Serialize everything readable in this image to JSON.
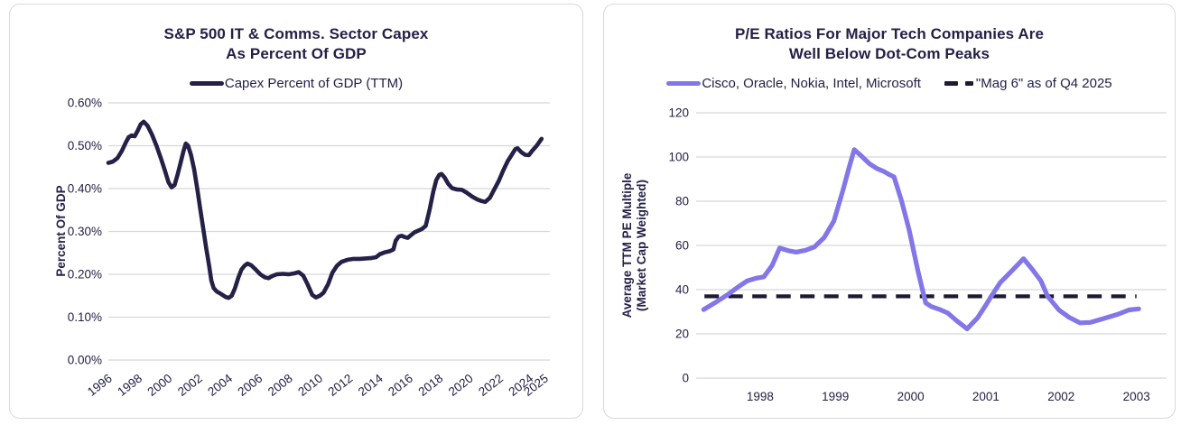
{
  "colors": {
    "navy": "#242046",
    "purple": "#8376E8",
    "dash_black": "#1D1A33",
    "gridline": "#D8D8D8",
    "card_border": "#D9D9D9",
    "card_background": "#FFFFFF"
  },
  "chart_data": [
    {
      "type": "line",
      "title_lines": [
        "S&P 500 IT & Comms. Sector Capex",
        "As Percent Of GDP"
      ],
      "ylabel_lines": [
        "Percent Of GDP"
      ],
      "legend_position": "top",
      "grid": "horizontal",
      "xlim": [
        1996,
        2025.05
      ],
      "ylim": [
        0,
        0.6
      ],
      "x_ticks": [
        1996,
        1998,
        2000,
        2002,
        2004,
        2006,
        2008,
        2010,
        2012,
        2014,
        2016,
        2018,
        2020,
        2022,
        2024,
        2025
      ],
      "y_ticks": [
        {
          "label": "0.00%",
          "v": 0
        },
        {
          "label": "0.10%",
          "v": 0.1
        },
        {
          "label": "0.20%",
          "v": 0.2
        },
        {
          "label": "0.30%",
          "v": 0.3
        },
        {
          "label": "0.40%",
          "v": 0.4
        },
        {
          "label": "0.50%",
          "v": 0.5
        },
        {
          "label": "0.60%",
          "v": 0.6
        }
      ],
      "series": [
        {
          "name": "Capex Percent of GDP (TTM)",
          "color": "#242046",
          "points": [
            [
              1996.0,
              0.46
            ],
            [
              1996.3,
              0.463
            ],
            [
              1996.6,
              0.471
            ],
            [
              1996.9,
              0.488
            ],
            [
              1997.15,
              0.507
            ],
            [
              1997.35,
              0.52
            ],
            [
              1997.55,
              0.524
            ],
            [
              1997.75,
              0.522
            ],
            [
              1997.95,
              0.535
            ],
            [
              1998.15,
              0.55
            ],
            [
              1998.35,
              0.556
            ],
            [
              1998.6,
              0.547
            ],
            [
              1998.9,
              0.526
            ],
            [
              1999.2,
              0.5
            ],
            [
              1999.5,
              0.47
            ],
            [
              1999.75,
              0.443
            ],
            [
              2000.0,
              0.415
            ],
            [
              2000.2,
              0.403
            ],
            [
              2000.4,
              0.408
            ],
            [
              2000.6,
              0.432
            ],
            [
              2000.8,
              0.46
            ],
            [
              2001.0,
              0.488
            ],
            [
              2001.15,
              0.505
            ],
            [
              2001.3,
              0.5
            ],
            [
              2001.5,
              0.478
            ],
            [
              2001.7,
              0.445
            ],
            [
              2001.9,
              0.402
            ],
            [
              2002.1,
              0.355
            ],
            [
              2002.3,
              0.308
            ],
            [
              2002.5,
              0.262
            ],
            [
              2002.7,
              0.22
            ],
            [
              2002.85,
              0.185
            ],
            [
              2003.0,
              0.168
            ],
            [
              2003.2,
              0.16
            ],
            [
              2003.5,
              0.154
            ],
            [
              2003.8,
              0.147
            ],
            [
              2004.0,
              0.145
            ],
            [
              2004.2,
              0.15
            ],
            [
              2004.4,
              0.166
            ],
            [
              2004.65,
              0.193
            ],
            [
              2004.85,
              0.211
            ],
            [
              2005.05,
              0.22
            ],
            [
              2005.25,
              0.225
            ],
            [
              2005.5,
              0.221
            ],
            [
              2005.8,
              0.211
            ],
            [
              2006.1,
              0.2
            ],
            [
              2006.4,
              0.193
            ],
            [
              2006.65,
              0.191
            ],
            [
              2006.9,
              0.196
            ],
            [
              2007.2,
              0.2
            ],
            [
              2007.6,
              0.201
            ],
            [
              2008.0,
              0.2
            ],
            [
              2008.35,
              0.202
            ],
            [
              2008.65,
              0.205
            ],
            [
              2008.95,
              0.197
            ],
            [
              2009.25,
              0.176
            ],
            [
              2009.55,
              0.152
            ],
            [
              2009.8,
              0.146
            ],
            [
              2010.05,
              0.15
            ],
            [
              2010.3,
              0.157
            ],
            [
              2010.6,
              0.176
            ],
            [
              2010.9,
              0.204
            ],
            [
              2011.2,
              0.22
            ],
            [
              2011.5,
              0.229
            ],
            [
              2011.9,
              0.234
            ],
            [
              2012.3,
              0.236
            ],
            [
              2012.7,
              0.236
            ],
            [
              2013.1,
              0.237
            ],
            [
              2013.5,
              0.238
            ],
            [
              2013.8,
              0.24
            ],
            [
              2014.05,
              0.247
            ],
            [
              2014.35,
              0.251
            ],
            [
              2014.7,
              0.254
            ],
            [
              2014.95,
              0.258
            ],
            [
              2015.1,
              0.278
            ],
            [
              2015.3,
              0.288
            ],
            [
              2015.5,
              0.29
            ],
            [
              2015.7,
              0.287
            ],
            [
              2015.9,
              0.285
            ],
            [
              2016.1,
              0.291
            ],
            [
              2016.35,
              0.298
            ],
            [
              2016.6,
              0.302
            ],
            [
              2016.85,
              0.306
            ],
            [
              2017.1,
              0.313
            ],
            [
              2017.35,
              0.35
            ],
            [
              2017.6,
              0.393
            ],
            [
              2017.8,
              0.42
            ],
            [
              2018.0,
              0.432
            ],
            [
              2018.15,
              0.434
            ],
            [
              2018.35,
              0.426
            ],
            [
              2018.6,
              0.411
            ],
            [
              2018.85,
              0.401
            ],
            [
              2019.15,
              0.398
            ],
            [
              2019.5,
              0.397
            ],
            [
              2019.8,
              0.391
            ],
            [
              2020.15,
              0.382
            ],
            [
              2020.5,
              0.375
            ],
            [
              2020.8,
              0.371
            ],
            [
              2021.05,
              0.369
            ],
            [
              2021.35,
              0.378
            ],
            [
              2021.65,
              0.398
            ],
            [
              2021.95,
              0.418
            ],
            [
              2022.25,
              0.442
            ],
            [
              2022.55,
              0.464
            ],
            [
              2022.8,
              0.478
            ],
            [
              2023.05,
              0.492
            ],
            [
              2023.2,
              0.494
            ],
            [
              2023.45,
              0.485
            ],
            [
              2023.7,
              0.479
            ],
            [
              2023.95,
              0.478
            ],
            [
              2024.2,
              0.489
            ],
            [
              2024.45,
              0.499
            ],
            [
              2024.8,
              0.516
            ]
          ]
        }
      ]
    },
    {
      "type": "line",
      "title_lines": [
        "P/E Ratios For Major Tech Companies Are",
        "Well Below Dot-Com Peaks"
      ],
      "ylabel_lines": [
        "Average TTM PE Multiple",
        "(Market Cap Weighted)"
      ],
      "legend_position": "top",
      "grid": "horizontal",
      "xlim": [
        1997.15,
        2003.4
      ],
      "ylim": [
        0,
        120
      ],
      "x_ticks": [
        1998,
        1999,
        2000,
        2001,
        2002,
        2003
      ],
      "y_ticks": [
        {
          "label": "0",
          "v": 0
        },
        {
          "label": "20",
          "v": 20
        },
        {
          "label": "40",
          "v": 40
        },
        {
          "label": "60",
          "v": 60
        },
        {
          "label": "80",
          "v": 80
        },
        {
          "label": "100",
          "v": 100
        },
        {
          "label": "120",
          "v": 120
        }
      ],
      "series": [
        {
          "name": "Cisco, Oracle, Nokia, Intel, Microsoft",
          "color": "#8376E8",
          "points": [
            [
              1997.25,
              31
            ],
            [
              1997.42,
              34.5
            ],
            [
              1997.58,
              38
            ],
            [
              1997.72,
              41.5
            ],
            [
              1997.83,
              44
            ],
            [
              1997.95,
              45.2
            ],
            [
              1998.05,
              45.8
            ],
            [
              1998.16,
              51
            ],
            [
              1998.26,
              58.8
            ],
            [
              1998.38,
              57.6
            ],
            [
              1998.48,
              57
            ],
            [
              1998.6,
              57.8
            ],
            [
              1998.72,
              59.3
            ],
            [
              1998.85,
              63.5
            ],
            [
              1998.98,
              71
            ],
            [
              1999.1,
              85
            ],
            [
              1999.18,
              95
            ],
            [
              1999.25,
              103.3
            ],
            [
              1999.33,
              101
            ],
            [
              1999.45,
              97
            ],
            [
              1999.55,
              94.8
            ],
            [
              1999.64,
              93.5
            ],
            [
              1999.72,
              92
            ],
            [
              1999.78,
              91
            ],
            [
              1999.88,
              80
            ],
            [
              1999.98,
              67
            ],
            [
              2000.1,
              48
            ],
            [
              2000.2,
              34
            ],
            [
              2000.28,
              32.3
            ],
            [
              2000.39,
              31
            ],
            [
              2000.49,
              29.5
            ],
            [
              2000.61,
              26
            ],
            [
              2000.75,
              22.3
            ],
            [
              2000.89,
              27.3
            ],
            [
              2001.0,
              33
            ],
            [
              2001.07,
              37
            ],
            [
              2001.19,
              43.2
            ],
            [
              2001.33,
              48
            ],
            [
              2001.5,
              54
            ],
            [
              2001.62,
              49
            ],
            [
              2001.73,
              44
            ],
            [
              2001.82,
              37
            ],
            [
              2001.97,
              30.8
            ],
            [
              2002.1,
              27.6
            ],
            [
              2002.25,
              25
            ],
            [
              2002.39,
              25.2
            ],
            [
              2002.54,
              26.7
            ],
            [
              2002.75,
              28.8
            ],
            [
              2002.9,
              30.8
            ],
            [
              2003.03,
              31.3
            ]
          ]
        }
      ],
      "hline": {
        "name": "\"Mag 6\" as of Q4 2025",
        "v": 37,
        "x_start": 1997.26,
        "x_end": 2003.0,
        "style": "dashed",
        "color": "#1D1A33"
      }
    }
  ]
}
